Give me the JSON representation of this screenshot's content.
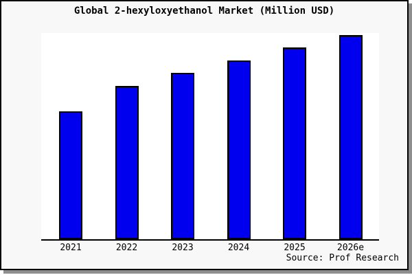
{
  "page": {
    "title": "Global 2-hexyloxyethanol Market (Million USD)",
    "source": "Source: Prof Research"
  },
  "colors": {
    "bar_fill": "#0000ee",
    "bar_border": "#000000",
    "page_bg": "#f8f8f8",
    "plot_bg": "#ffffff",
    "axis": "#000000",
    "shadow": "#8e8e8e"
  },
  "chart_data": {
    "type": "bar",
    "title": "Global 2-hexyloxyethanol Market (Million USD)",
    "categories": [
      "2021",
      "2022",
      "2023",
      "2024",
      "2025",
      "2026e"
    ],
    "values": [
      62.6,
      75.1,
      81.6,
      87.5,
      93.9,
      100
    ],
    "value_scale": "relative index, 2026e = 100 (no y-axis labels shown in chart)",
    "xlabel": "",
    "ylabel": "",
    "ylim": [
      0,
      101
    ],
    "grid": false,
    "legend": false,
    "source": "Source: Prof Research"
  }
}
